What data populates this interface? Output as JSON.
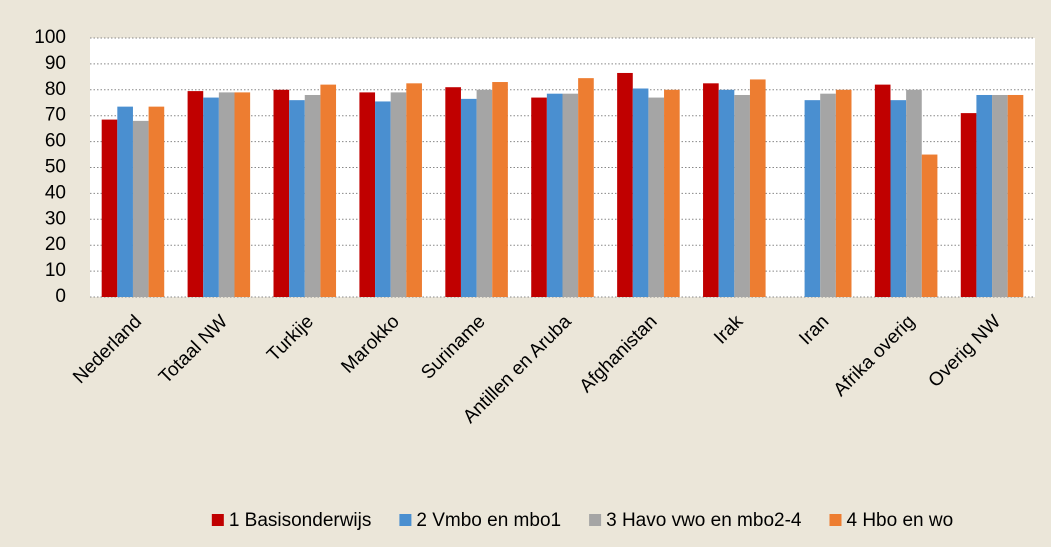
{
  "chart_data": {
    "type": "bar",
    "categories": [
      "Nederland",
      "Totaal NW",
      "Turkije",
      "Marokko",
      "Suriname",
      "Antillen en Aruba",
      "Afghanistan",
      "Irak",
      "Iran",
      "Afrika overig",
      "Overig NW"
    ],
    "series": [
      {
        "name": "1 Basisonderwijs",
        "color": "#c00000",
        "values": [
          68.5,
          79.5,
          80,
          79,
          81,
          77,
          86.5,
          82.5,
          null,
          82,
          71
        ]
      },
      {
        "name": "2 Vmbo en mbo1",
        "color": "#4a8fd0",
        "values": [
          73.5,
          77,
          76,
          75.5,
          76.5,
          78.5,
          80.5,
          80,
          76,
          76,
          78
        ]
      },
      {
        "name": "3 Havo vwo en mbo2-4",
        "color": "#a5a5a5",
        "values": [
          68,
          79,
          78,
          79,
          80,
          78.5,
          77,
          78,
          78.5,
          80,
          78
        ]
      },
      {
        "name": "4 Hbo en wo",
        "color": "#ed7d31",
        "values": [
          73.5,
          79,
          82,
          82.5,
          83,
          84.5,
          80,
          84,
          80,
          55,
          78
        ]
      }
    ],
    "ylim": [
      0,
      100
    ],
    "yticks": [
      0,
      10,
      20,
      30,
      40,
      50,
      60,
      70,
      80,
      90,
      100
    ],
    "grid": true,
    "legend": "bottom"
  }
}
